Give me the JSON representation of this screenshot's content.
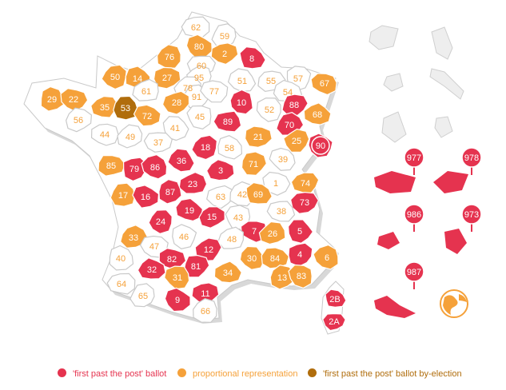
{
  "colors": {
    "fptp": "#e5334f",
    "proportional": "#f5a13a",
    "byelection": "#b06d0c",
    "none": "#ffffff",
    "outline": "#c9c9c9"
  },
  "departments": [
    {
      "code": "62",
      "type": "none"
    },
    {
      "code": "59",
      "type": "none"
    },
    {
      "code": "80",
      "type": "proportional"
    },
    {
      "code": "2",
      "type": "proportional"
    },
    {
      "code": "76",
      "type": "proportional"
    },
    {
      "code": "8",
      "type": "fptp"
    },
    {
      "code": "60",
      "type": "none"
    },
    {
      "code": "50",
      "type": "proportional"
    },
    {
      "code": "14",
      "type": "proportional"
    },
    {
      "code": "27",
      "type": "proportional"
    },
    {
      "code": "95",
      "type": "none"
    },
    {
      "code": "51",
      "type": "none"
    },
    {
      "code": "55",
      "type": "none"
    },
    {
      "code": "57",
      "type": "none"
    },
    {
      "code": "67",
      "type": "proportional"
    },
    {
      "code": "78",
      "type": "none"
    },
    {
      "code": "91",
      "type": "none"
    },
    {
      "code": "77",
      "type": "none"
    },
    {
      "code": "61",
      "type": "none"
    },
    {
      "code": "29",
      "type": "proportional"
    },
    {
      "code": "22",
      "type": "proportional"
    },
    {
      "code": "35",
      "type": "proportional"
    },
    {
      "code": "53",
      "type": "byelection"
    },
    {
      "code": "72",
      "type": "proportional"
    },
    {
      "code": "28",
      "type": "proportional"
    },
    {
      "code": "10",
      "type": "fptp"
    },
    {
      "code": "54",
      "type": "none"
    },
    {
      "code": "88",
      "type": "fptp"
    },
    {
      "code": "52",
      "type": "none"
    },
    {
      "code": "68",
      "type": "proportional"
    },
    {
      "code": "56",
      "type": "none"
    },
    {
      "code": "45",
      "type": "none"
    },
    {
      "code": "89",
      "type": "fptp"
    },
    {
      "code": "70",
      "type": "fptp"
    },
    {
      "code": "90",
      "type": "fptp"
    },
    {
      "code": "44",
      "type": "none"
    },
    {
      "code": "49",
      "type": "none"
    },
    {
      "code": "41",
      "type": "none"
    },
    {
      "code": "37",
      "type": "none"
    },
    {
      "code": "18",
      "type": "fptp"
    },
    {
      "code": "58",
      "type": "none"
    },
    {
      "code": "21",
      "type": "proportional"
    },
    {
      "code": "25",
      "type": "proportional"
    },
    {
      "code": "36",
      "type": "fptp"
    },
    {
      "code": "85",
      "type": "proportional"
    },
    {
      "code": "79",
      "type": "fptp"
    },
    {
      "code": "86",
      "type": "fptp"
    },
    {
      "code": "3",
      "type": "fptp"
    },
    {
      "code": "71",
      "type": "proportional"
    },
    {
      "code": "39",
      "type": "none"
    },
    {
      "code": "23",
      "type": "fptp"
    },
    {
      "code": "87",
      "type": "fptp"
    },
    {
      "code": "1",
      "type": "none"
    },
    {
      "code": "74",
      "type": "proportional"
    },
    {
      "code": "17",
      "type": "proportional"
    },
    {
      "code": "16",
      "type": "fptp"
    },
    {
      "code": "63",
      "type": "none"
    },
    {
      "code": "42",
      "type": "none"
    },
    {
      "code": "69",
      "type": "proportional"
    },
    {
      "code": "73",
      "type": "fptp"
    },
    {
      "code": "24",
      "type": "fptp"
    },
    {
      "code": "19",
      "type": "fptp"
    },
    {
      "code": "15",
      "type": "fptp"
    },
    {
      "code": "43",
      "type": "none"
    },
    {
      "code": "38",
      "type": "none"
    },
    {
      "code": "33",
      "type": "proportional"
    },
    {
      "code": "46",
      "type": "none"
    },
    {
      "code": "7",
      "type": "fptp"
    },
    {
      "code": "26",
      "type": "proportional"
    },
    {
      "code": "5",
      "type": "fptp"
    },
    {
      "code": "47",
      "type": "none"
    },
    {
      "code": "48",
      "type": "none"
    },
    {
      "code": "40",
      "type": "none"
    },
    {
      "code": "82",
      "type": "fptp"
    },
    {
      "code": "12",
      "type": "fptp"
    },
    {
      "code": "30",
      "type": "proportional"
    },
    {
      "code": "84",
      "type": "proportional"
    },
    {
      "code": "4",
      "type": "fptp"
    },
    {
      "code": "6",
      "type": "proportional"
    },
    {
      "code": "32",
      "type": "fptp"
    },
    {
      "code": "81",
      "type": "fptp"
    },
    {
      "code": "31",
      "type": "proportional"
    },
    {
      "code": "34",
      "type": "proportional"
    },
    {
      "code": "13",
      "type": "proportional"
    },
    {
      "code": "83",
      "type": "proportional"
    },
    {
      "code": "64",
      "type": "none"
    },
    {
      "code": "65",
      "type": "none"
    },
    {
      "code": "9",
      "type": "fptp"
    },
    {
      "code": "11",
      "type": "fptp"
    },
    {
      "code": "66",
      "type": "none"
    },
    {
      "code": "2B",
      "type": "fptp"
    },
    {
      "code": "2A",
      "type": "fptp"
    }
  ],
  "overseas": [
    {
      "code": "977",
      "type": "fptp"
    },
    {
      "code": "978",
      "type": "fptp"
    },
    {
      "code": "986",
      "type": "fptp"
    },
    {
      "code": "973",
      "type": "fptp"
    },
    {
      "code": "987",
      "type": "fptp"
    }
  ],
  "legend": [
    {
      "label": "'first past the post' ballot",
      "type": "fptp"
    },
    {
      "label": "proportional representation",
      "type": "proportional"
    },
    {
      "label": "'first past the post' ballot by-election",
      "type": "byelection"
    }
  ]
}
